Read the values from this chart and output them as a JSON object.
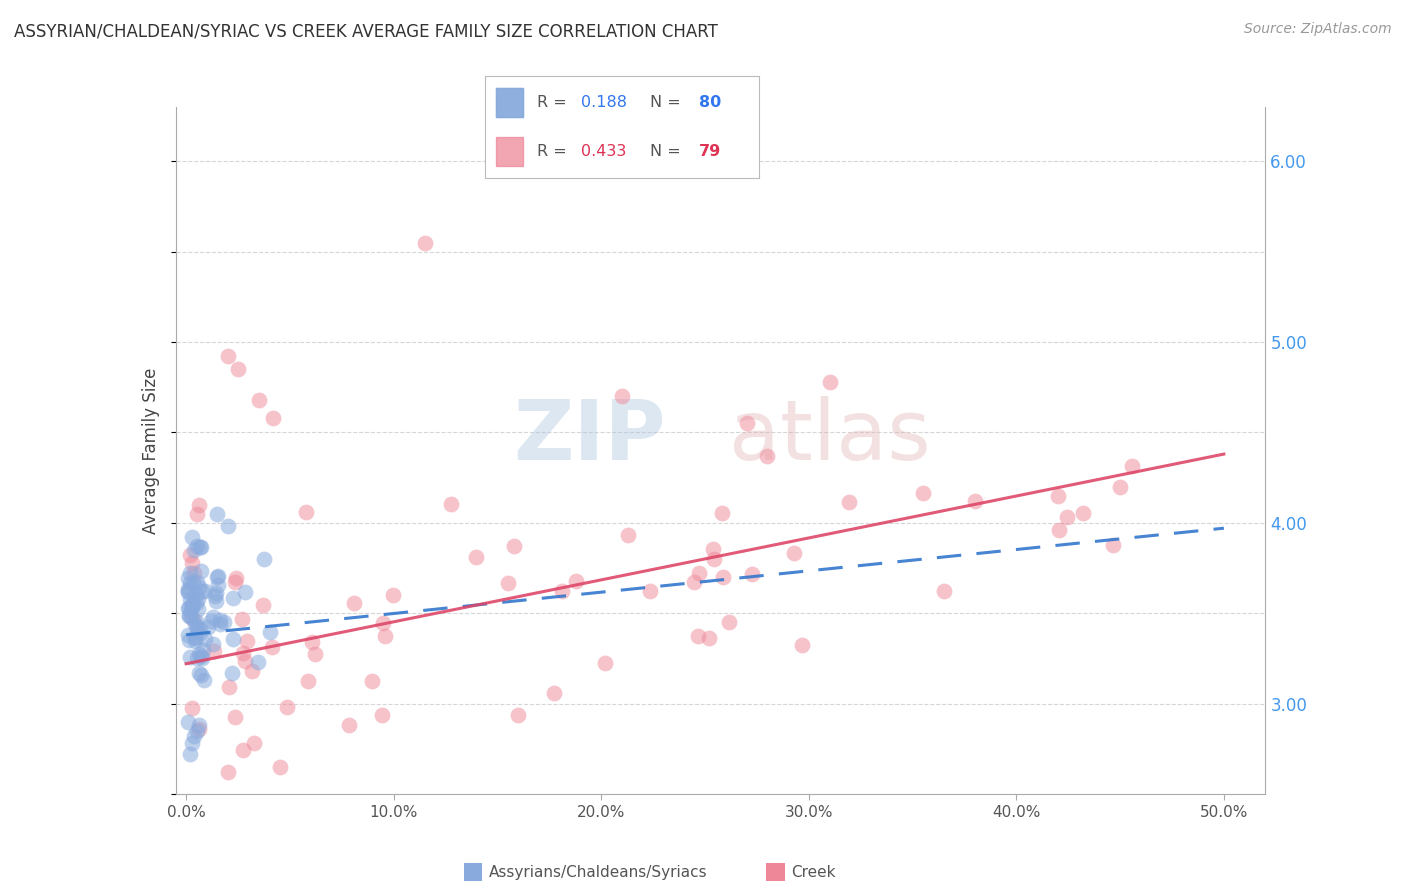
{
  "title": "ASSYRIAN/CHALDEAN/SYRIAC VS CREEK AVERAGE FAMILY SIZE CORRELATION CHART",
  "source": "Source: ZipAtlas.com",
  "ylabel": "Average Family Size",
  "xlabel_ticks": [
    "0.0%",
    "10.0%",
    "20.0%",
    "30.0%",
    "40.0%",
    "50.0%"
  ],
  "xlabel_vals": [
    0.0,
    0.1,
    0.2,
    0.3,
    0.4,
    0.5
  ],
  "ylim": [
    2.5,
    6.3
  ],
  "xlim": [
    -0.005,
    0.52
  ],
  "right_yticks": [
    3.0,
    4.0,
    5.0,
    6.0
  ],
  "right_ytick_labels": [
    "3.00",
    "4.00",
    "5.00",
    "6.00"
  ],
  "grid_color": "#cccccc",
  "background_color": "#ffffff",
  "legend": {
    "blue_r": "0.188",
    "blue_n": "80",
    "pink_r": "0.433",
    "pink_n": "79"
  },
  "blue_color": "#88aadd",
  "pink_color": "#ee8899",
  "blue_line": {
    "x0": 0.0,
    "y0": 3.38,
    "x1": 0.5,
    "y1": 3.97
  },
  "pink_line": {
    "x0": 0.0,
    "y0": 3.22,
    "x1": 0.5,
    "y1": 4.38
  }
}
